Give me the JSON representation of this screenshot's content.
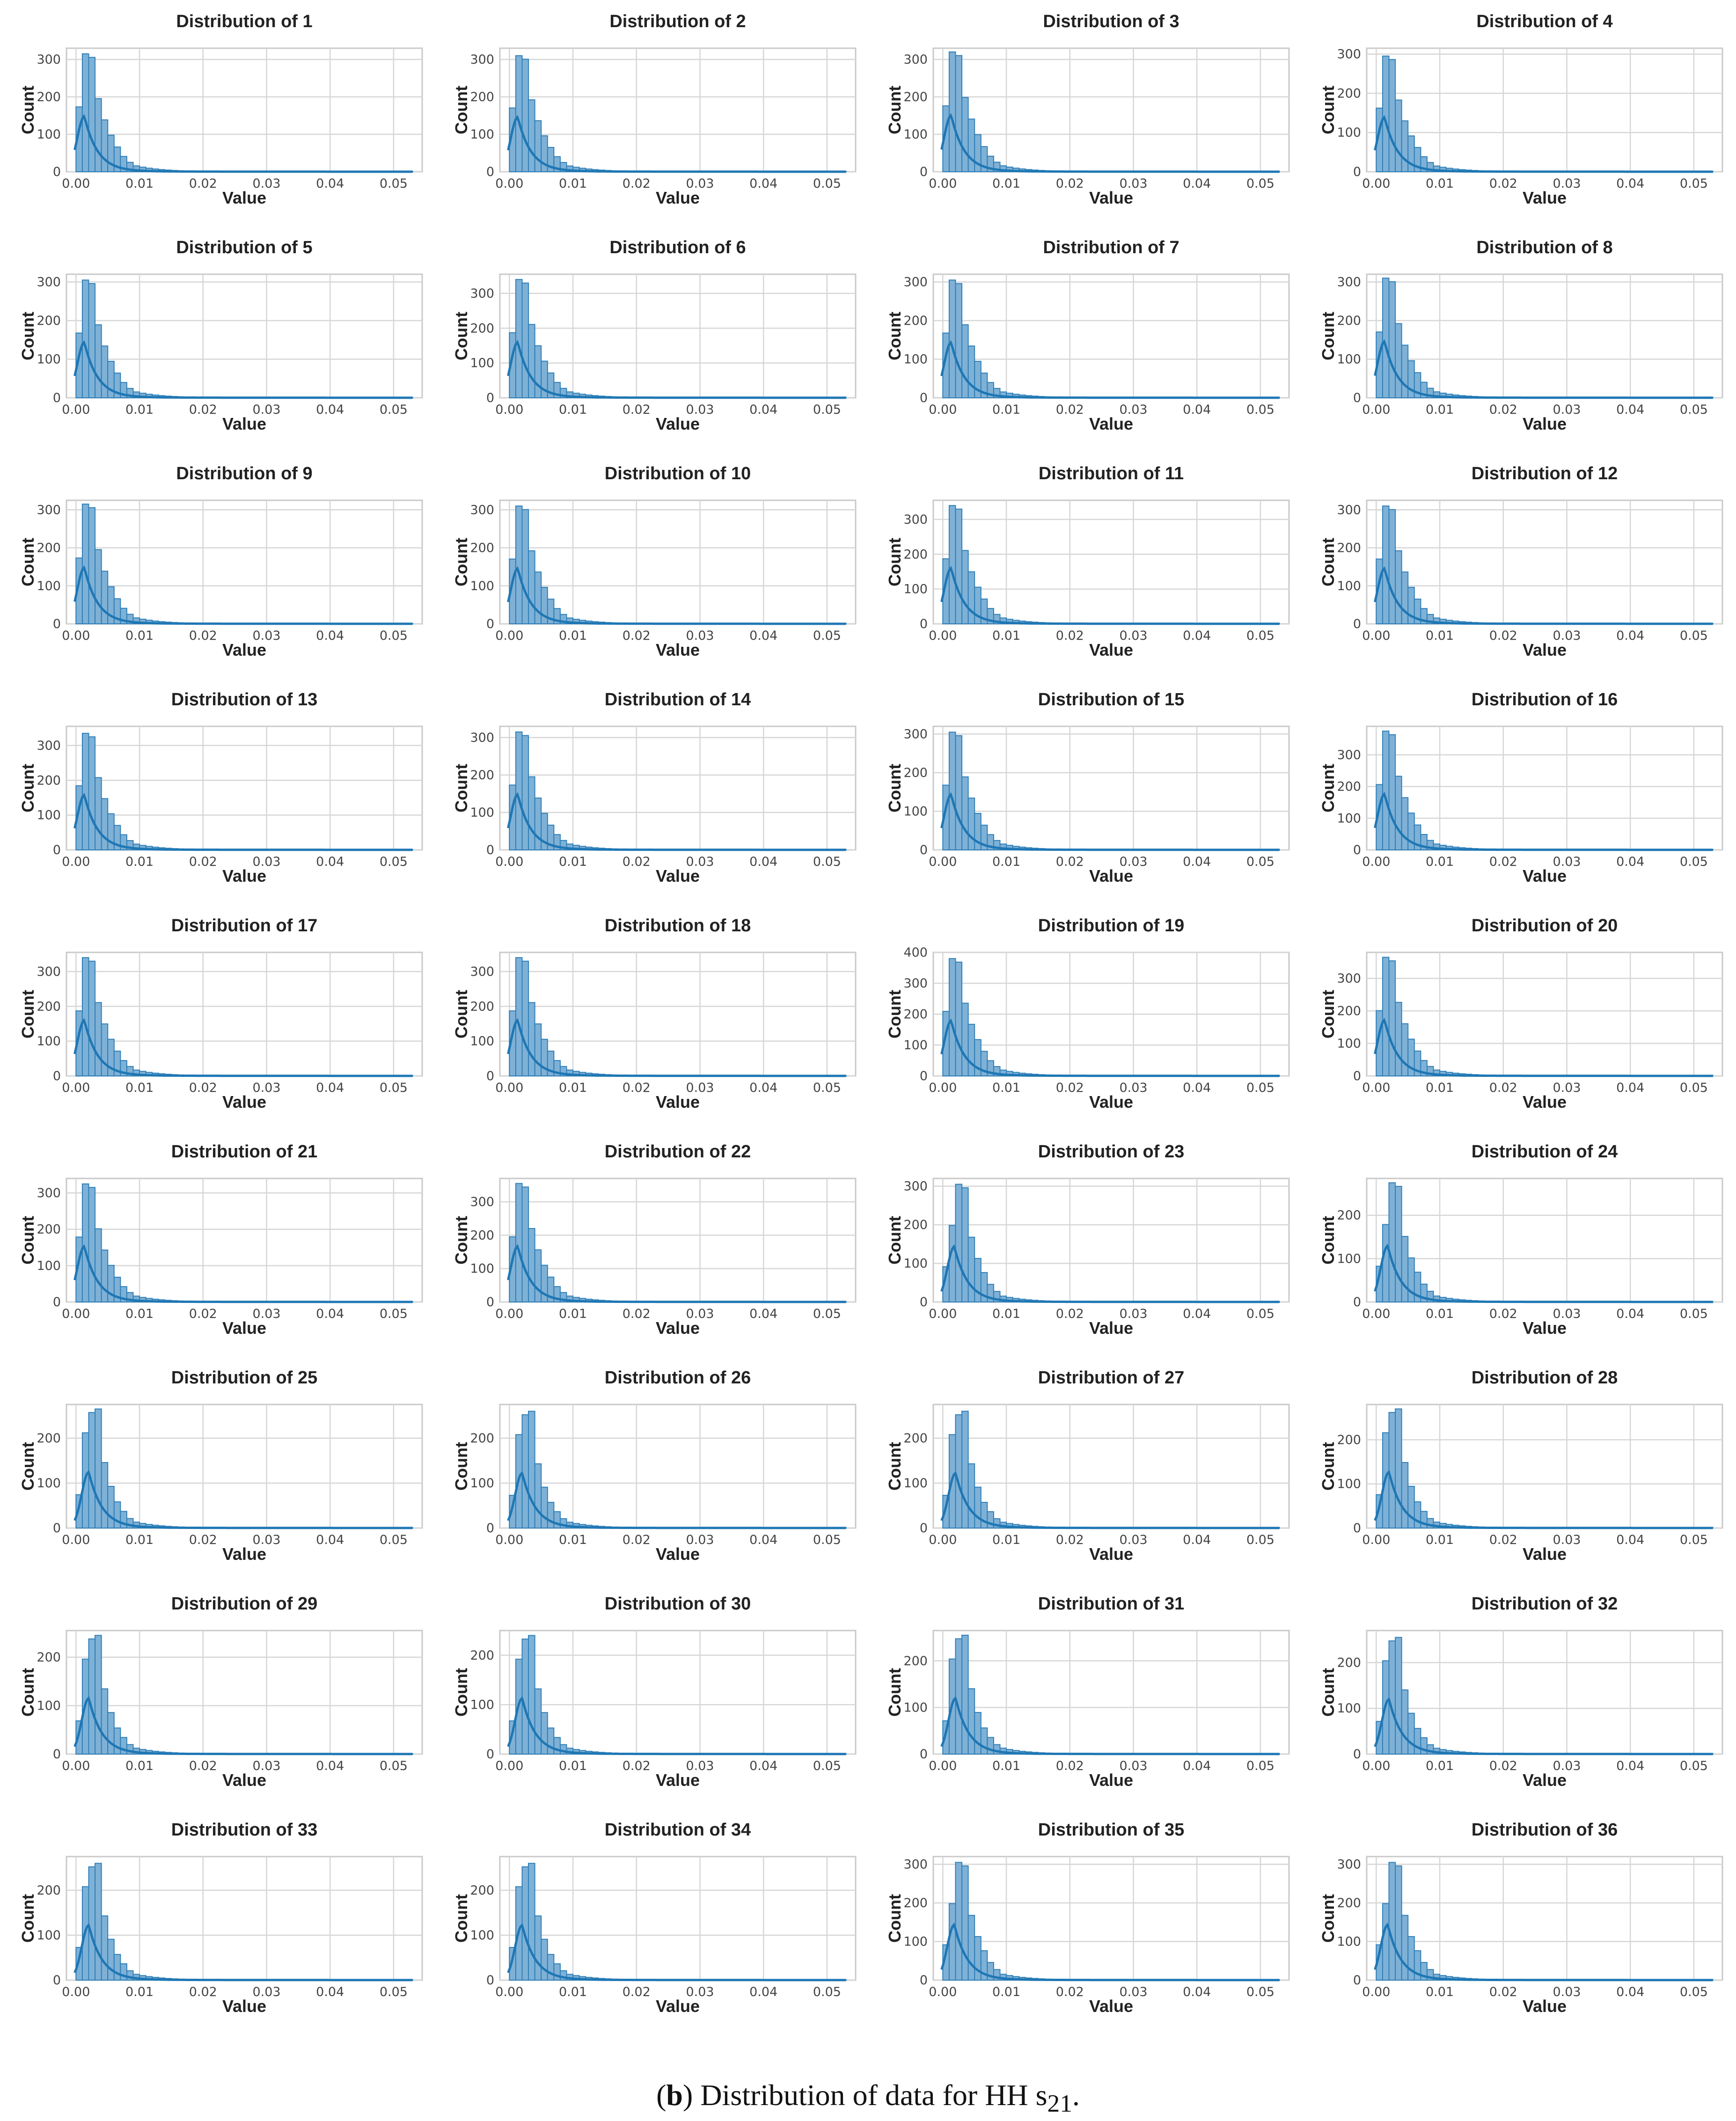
{
  "caption": {
    "open_paren": "(",
    "letter": "b",
    "text": ") Distribution of data for HH  s",
    "subscript": "21",
    "period": "."
  },
  "colors": {
    "bar_fill": "#7fb1d6",
    "bar_edge": "#2f7fb8",
    "kde_line": "#1f77b4",
    "grid": "#d6d6d6"
  },
  "chart_data": {
    "type": "bar",
    "layout": "4x9 grid of histogram panels with KDE overlay",
    "xlabel": "Value",
    "ylabel": "Count",
    "x_ticks": [
      "0.00",
      "0.01",
      "0.02",
      "0.03",
      "0.04",
      "0.05"
    ],
    "x_tick_values": [
      0.0,
      0.01,
      0.02,
      0.03,
      0.04,
      0.05
    ],
    "xlim": [
      -0.0015,
      0.0545
    ],
    "bin_width": 0.001,
    "grid": true,
    "panels": [
      {
        "title": "Distribution of 1",
        "yticks": [
          0,
          100,
          200,
          300
        ],
        "ymax": 330,
        "peak": 315,
        "shape": "early"
      },
      {
        "title": "Distribution of 2",
        "yticks": [
          0,
          100,
          200,
          300
        ],
        "ymax": 330,
        "peak": 310,
        "shape": "early"
      },
      {
        "title": "Distribution of 3",
        "yticks": [
          0,
          100,
          200,
          300
        ],
        "ymax": 330,
        "peak": 320,
        "shape": "early"
      },
      {
        "title": "Distribution of 4",
        "yticks": [
          0,
          100,
          200,
          300
        ],
        "ymax": 315,
        "peak": 295,
        "shape": "early"
      },
      {
        "title": "Distribution of 5",
        "yticks": [
          0,
          100,
          200,
          300
        ],
        "ymax": 320,
        "peak": 305,
        "shape": "early"
      },
      {
        "title": "Distribution of 6",
        "yticks": [
          0,
          100,
          200,
          300
        ],
        "ymax": 355,
        "peak": 340,
        "shape": "early"
      },
      {
        "title": "Distribution of 7",
        "yticks": [
          0,
          100,
          200,
          300
        ],
        "ymax": 320,
        "peak": 305,
        "shape": "early"
      },
      {
        "title": "Distribution of 8",
        "yticks": [
          0,
          100,
          200,
          300
        ],
        "ymax": 320,
        "peak": 310,
        "shape": "early"
      },
      {
        "title": "Distribution of 9",
        "yticks": [
          0,
          100,
          200,
          300
        ],
        "ymax": 325,
        "peak": 315,
        "shape": "early"
      },
      {
        "title": "Distribution of 10",
        "yticks": [
          0,
          100,
          200,
          300
        ],
        "ymax": 325,
        "peak": 310,
        "shape": "early"
      },
      {
        "title": "Distribution of 11",
        "yticks": [
          0,
          100,
          200,
          300
        ],
        "ymax": 355,
        "peak": 340,
        "shape": "early"
      },
      {
        "title": "Distribution of 12",
        "yticks": [
          0,
          100,
          200,
          300
        ],
        "ymax": 325,
        "peak": 310,
        "shape": "early"
      },
      {
        "title": "Distribution of 13",
        "yticks": [
          0,
          100,
          200,
          300
        ],
        "ymax": 355,
        "peak": 335,
        "shape": "early"
      },
      {
        "title": "Distribution of 14",
        "yticks": [
          0,
          100,
          200,
          300
        ],
        "ymax": 330,
        "peak": 315,
        "shape": "early"
      },
      {
        "title": "Distribution of 15",
        "yticks": [
          0,
          100,
          200,
          300
        ],
        "ymax": 320,
        "peak": 305,
        "shape": "early"
      },
      {
        "title": "Distribution of 16",
        "yticks": [
          0,
          100,
          200,
          300
        ],
        "ymax": 390,
        "peak": 375,
        "shape": "early"
      },
      {
        "title": "Distribution of 17",
        "yticks": [
          0,
          100,
          200,
          300
        ],
        "ymax": 355,
        "peak": 340,
        "shape": "early"
      },
      {
        "title": "Distribution of 18",
        "yticks": [
          0,
          100,
          200,
          300
        ],
        "ymax": 355,
        "peak": 340,
        "shape": "early"
      },
      {
        "title": "Distribution of 19",
        "yticks": [
          0,
          100,
          200,
          300,
          400
        ],
        "ymax": 400,
        "peak": 380,
        "shape": "early"
      },
      {
        "title": "Distribution of 20",
        "yticks": [
          0,
          100,
          200,
          300
        ],
        "ymax": 380,
        "peak": 365,
        "shape": "early"
      },
      {
        "title": "Distribution of 21",
        "yticks": [
          0,
          100,
          200,
          300
        ],
        "ymax": 340,
        "peak": 325,
        "shape": "early"
      },
      {
        "title": "Distribution of 22",
        "yticks": [
          0,
          100,
          200,
          300
        ],
        "ymax": 370,
        "peak": 355,
        "shape": "early"
      },
      {
        "title": "Distribution of 23",
        "yticks": [
          0,
          100,
          200,
          300
        ],
        "ymax": 320,
        "peak": 305,
        "shape": "mid"
      },
      {
        "title": "Distribution of 24",
        "yticks": [
          0,
          100,
          200
        ],
        "ymax": 285,
        "peak": 275,
        "shape": "mid"
      },
      {
        "title": "Distribution of 25",
        "yticks": [
          0,
          100,
          200
        ],
        "ymax": 275,
        "peak": 265,
        "shape": "late"
      },
      {
        "title": "Distribution of 26",
        "yticks": [
          0,
          100,
          200
        ],
        "ymax": 275,
        "peak": 260,
        "shape": "late"
      },
      {
        "title": "Distribution of 27",
        "yticks": [
          0,
          100,
          200
        ],
        "ymax": 275,
        "peak": 260,
        "shape": "late"
      },
      {
        "title": "Distribution of 28",
        "yticks": [
          0,
          100,
          200
        ],
        "ymax": 280,
        "peak": 270,
        "shape": "late"
      },
      {
        "title": "Distribution of 29",
        "yticks": [
          0,
          100,
          200
        ],
        "ymax": 255,
        "peak": 245,
        "shape": "late"
      },
      {
        "title": "Distribution of 30",
        "yticks": [
          0,
          100,
          200
        ],
        "ymax": 250,
        "peak": 240,
        "shape": "late"
      },
      {
        "title": "Distribution of 31",
        "yticks": [
          0,
          100,
          200
        ],
        "ymax": 265,
        "peak": 255,
        "shape": "late"
      },
      {
        "title": "Distribution of 32",
        "yticks": [
          0,
          100,
          200
        ],
        "ymax": 270,
        "peak": 255,
        "shape": "late"
      },
      {
        "title": "Distribution of 33",
        "yticks": [
          0,
          100,
          200
        ],
        "ymax": 275,
        "peak": 260,
        "shape": "late"
      },
      {
        "title": "Distribution of 34",
        "yticks": [
          0,
          100,
          200
        ],
        "ymax": 275,
        "peak": 260,
        "shape": "late"
      },
      {
        "title": "Distribution of 35",
        "yticks": [
          0,
          100,
          200,
          300
        ],
        "ymax": 320,
        "peak": 305,
        "shape": "mid"
      },
      {
        "title": "Distribution of 36",
        "yticks": [
          0,
          100,
          200,
          300
        ],
        "ymax": 320,
        "peak": 305,
        "shape": "mid"
      }
    ]
  }
}
